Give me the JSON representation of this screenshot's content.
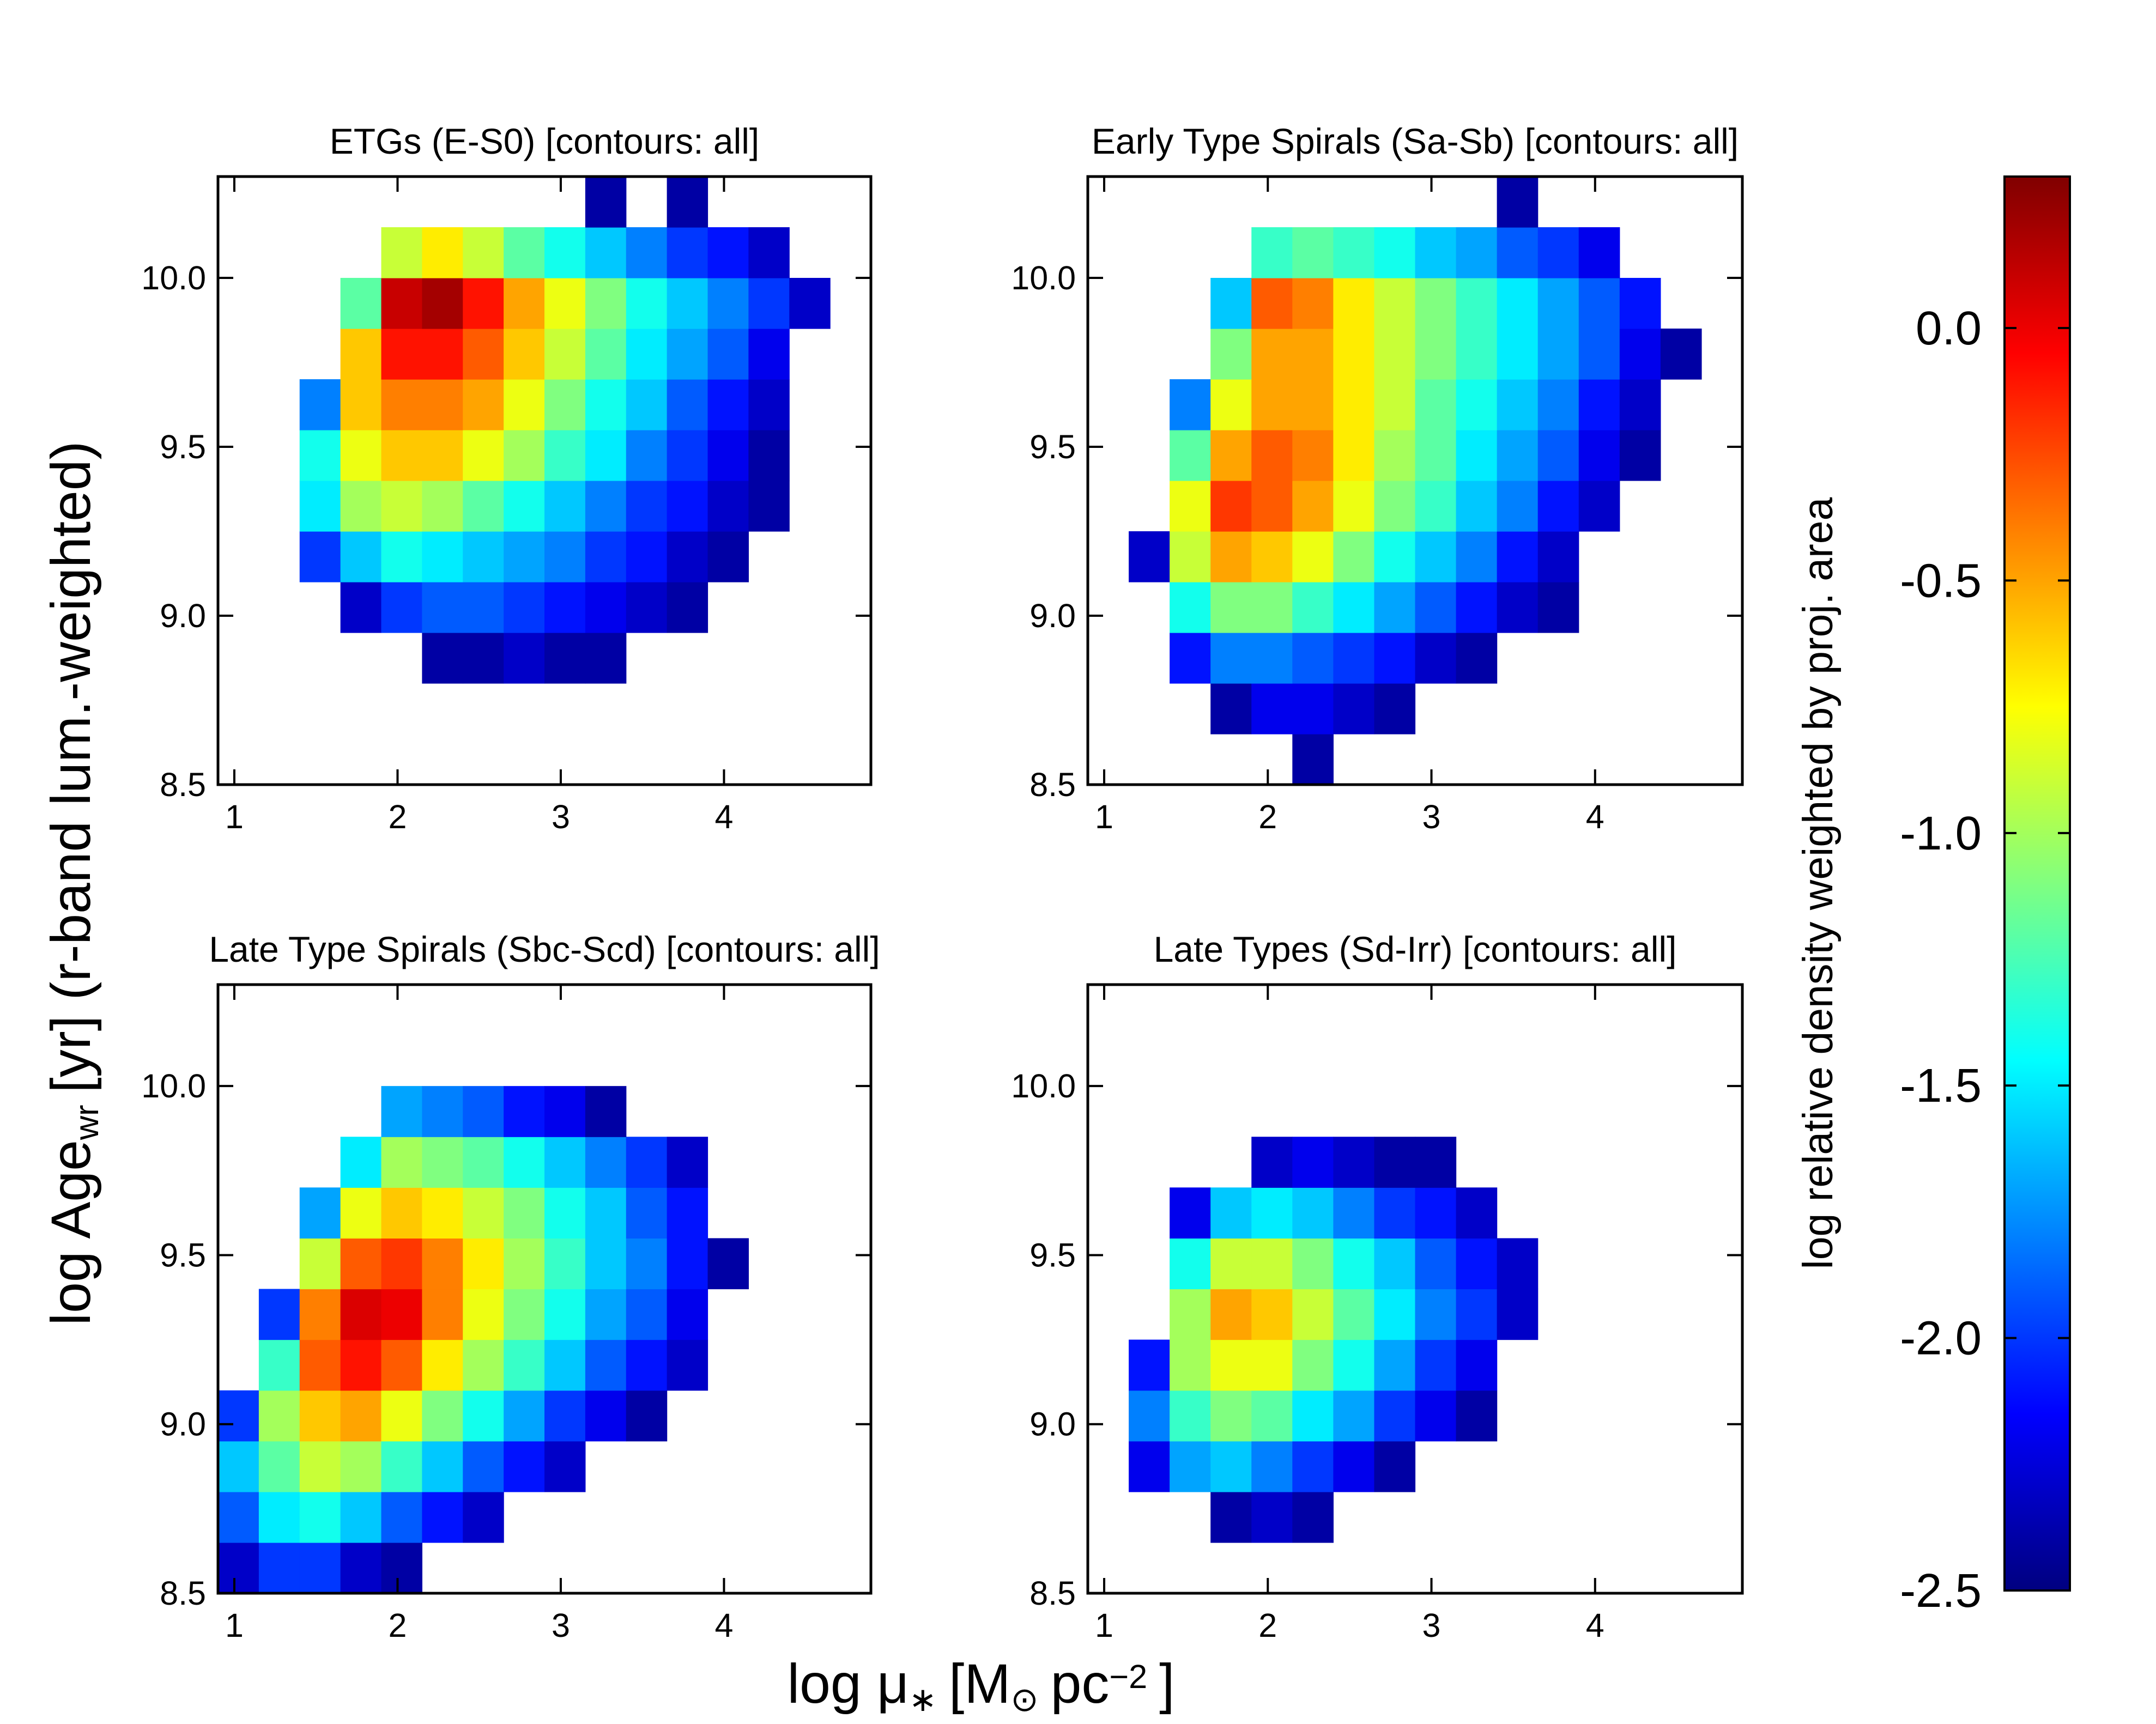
{
  "x_label": [
    {
      "text": "log μ"
    },
    {
      "sub": "∗"
    },
    {
      "text": "[M"
    },
    {
      "sub": "⊙"
    },
    {
      "text": "pc"
    },
    {
      "sup": "−2"
    },
    {
      "text": "]"
    }
  ],
  "y_label": [
    {
      "text": "log Age"
    },
    {
      "sub": "wr"
    },
    {
      "text": "[yr]  (r-band lum.-weighted)"
    }
  ],
  "chart_data": [
    {
      "type": "heatmap",
      "title": "ETGs (E-S0) [contours: all]",
      "xlim": [
        0.9,
        4.9
      ],
      "ylim": [
        8.5,
        10.3
      ],
      "xticks": [
        1,
        2,
        3,
        4
      ],
      "yticks": [
        {
          "value": 8.5,
          "label": "8.5"
        },
        {
          "value": 9,
          "label": "9.0"
        },
        {
          "value": 9.5,
          "label": "9.5"
        },
        {
          "value": 10,
          "label": "10.0"
        }
      ],
      "xbins": [
        0.9,
        1.15,
        1.4,
        1.65,
        1.9,
        2.15,
        2.4,
        2.65,
        2.9,
        3.15,
        3.4,
        3.65,
        3.9,
        4.15,
        4.4,
        4.65,
        4.9
      ],
      "ybins": [
        8.5,
        8.65,
        8.8,
        8.95,
        9.1,
        9.25,
        9.4,
        9.55,
        9.7,
        9.85,
        10.0,
        10.15,
        10.3
      ],
      "values": [
        [
          null,
          null,
          null,
          null,
          null,
          null,
          null,
          null,
          null,
          null,
          null,
          null,
          null,
          null,
          null,
          null
        ],
        [
          null,
          null,
          null,
          null,
          null,
          null,
          null,
          null,
          null,
          null,
          null,
          null,
          null,
          null,
          null,
          null
        ],
        [
          null,
          null,
          null,
          null,
          null,
          -2.4,
          -2.4,
          -2.3,
          -2.4,
          -2.4,
          null,
          null,
          null,
          null,
          null,
          null
        ],
        [
          null,
          null,
          null,
          -2.3,
          -2.0,
          -1.9,
          -1.9,
          -2.0,
          -2.1,
          -2.2,
          -2.3,
          -2.4,
          null,
          null,
          null,
          null
        ],
        [
          null,
          null,
          -2.0,
          -1.6,
          -1.4,
          -1.5,
          -1.6,
          -1.7,
          -1.8,
          -2.0,
          -2.1,
          -2.3,
          -2.4,
          null,
          null,
          null
        ],
        [
          null,
          null,
          -1.5,
          -1.0,
          -0.9,
          -1.0,
          -1.2,
          -1.4,
          -1.6,
          -1.8,
          -2.0,
          -2.1,
          -2.3,
          -2.4,
          null,
          null
        ],
        [
          null,
          null,
          -1.4,
          -0.8,
          -0.6,
          -0.6,
          -0.8,
          -1.0,
          -1.3,
          -1.5,
          -1.8,
          -2.0,
          -2.2,
          -2.4,
          null,
          null
        ],
        [
          null,
          null,
          -1.8,
          -0.6,
          -0.4,
          -0.4,
          -0.5,
          -0.8,
          -1.1,
          -1.4,
          -1.6,
          -1.9,
          -2.1,
          -2.3,
          null,
          null
        ],
        [
          null,
          null,
          null,
          -0.6,
          -0.1,
          -0.1,
          -0.3,
          -0.6,
          -0.9,
          -1.2,
          -1.5,
          -1.7,
          -1.9,
          -2.2,
          null,
          null
        ],
        [
          null,
          null,
          null,
          -1.2,
          0.1,
          0.2,
          -0.1,
          -0.5,
          -0.8,
          -1.1,
          -1.4,
          -1.6,
          -1.8,
          -2.0,
          -2.3,
          null
        ],
        [
          null,
          null,
          null,
          null,
          -0.9,
          -0.7,
          -0.9,
          -1.2,
          -1.4,
          -1.6,
          -1.8,
          -2.0,
          -2.1,
          -2.3,
          null,
          null
        ],
        [
          null,
          null,
          null,
          null,
          null,
          null,
          null,
          null,
          null,
          -2.4,
          null,
          -2.4,
          null,
          null,
          null,
          null
        ]
      ]
    },
    {
      "type": "heatmap",
      "title": "Early Type Spirals (Sa-Sb) [contours: all]",
      "xlim": [
        0.9,
        4.9
      ],
      "ylim": [
        8.5,
        10.3
      ],
      "xticks": [
        1,
        2,
        3,
        4
      ],
      "yticks": [
        {
          "value": 8.5,
          "label": "8.5"
        },
        {
          "value": 9,
          "label": "9.0"
        },
        {
          "value": 9.5,
          "label": "9.5"
        },
        {
          "value": 10,
          "label": "10.0"
        }
      ],
      "xbins": [
        0.9,
        1.15,
        1.4,
        1.65,
        1.9,
        2.15,
        2.4,
        2.65,
        2.9,
        3.15,
        3.4,
        3.65,
        3.9,
        4.15,
        4.4,
        4.65,
        4.9
      ],
      "ybins": [
        8.5,
        8.65,
        8.8,
        8.95,
        9.1,
        9.25,
        9.4,
        9.55,
        9.7,
        9.85,
        10.0,
        10.15,
        10.3
      ],
      "values": [
        [
          null,
          null,
          null,
          null,
          null,
          -2.4,
          null,
          null,
          null,
          null,
          null,
          null,
          null,
          null,
          null,
          null
        ],
        [
          null,
          null,
          null,
          -2.4,
          -2.2,
          -2.2,
          -2.3,
          -2.4,
          null,
          null,
          null,
          null,
          null,
          null,
          null,
          null
        ],
        [
          null,
          null,
          -2.1,
          -1.8,
          -1.8,
          -1.9,
          -2.0,
          -2.1,
          -2.3,
          -2.4,
          null,
          null,
          null,
          null,
          null,
          null
        ],
        [
          null,
          null,
          -1.4,
          -1.1,
          -1.1,
          -1.3,
          -1.5,
          -1.7,
          -1.9,
          -2.1,
          -2.3,
          -2.4,
          null,
          null,
          null,
          null
        ],
        [
          null,
          -2.3,
          -0.9,
          -0.5,
          -0.6,
          -0.8,
          -1.1,
          -1.4,
          -1.6,
          -1.8,
          -2.1,
          -2.3,
          null,
          null,
          null,
          null
        ],
        [
          null,
          null,
          -0.8,
          -0.2,
          -0.3,
          -0.5,
          -0.8,
          -1.1,
          -1.3,
          -1.6,
          -1.8,
          -2.1,
          -2.3,
          null,
          null,
          null
        ],
        [
          null,
          null,
          -1.2,
          -0.5,
          -0.3,
          -0.4,
          -0.7,
          -1.0,
          -1.2,
          -1.5,
          -1.7,
          -1.9,
          -2.2,
          -2.4,
          null,
          null
        ],
        [
          null,
          null,
          -1.8,
          -0.8,
          -0.5,
          -0.5,
          -0.7,
          -0.9,
          -1.2,
          -1.4,
          -1.6,
          -1.8,
          -2.1,
          -2.3,
          null,
          null
        ],
        [
          null,
          null,
          null,
          -1.1,
          -0.5,
          -0.5,
          -0.7,
          -0.9,
          -1.1,
          -1.3,
          -1.5,
          -1.7,
          -1.9,
          -2.2,
          -2.4,
          null
        ],
        [
          null,
          null,
          null,
          -1.6,
          -0.3,
          -0.4,
          -0.7,
          -0.9,
          -1.1,
          -1.3,
          -1.5,
          -1.7,
          -1.9,
          -2.1,
          null,
          null
        ],
        [
          null,
          null,
          null,
          null,
          -1.3,
          -1.2,
          -1.3,
          -1.4,
          -1.6,
          -1.7,
          -1.9,
          -2.0,
          -2.2,
          null,
          null,
          null
        ],
        [
          null,
          null,
          null,
          null,
          null,
          null,
          null,
          null,
          null,
          null,
          -2.4,
          null,
          null,
          null,
          null,
          null
        ]
      ]
    },
    {
      "type": "heatmap",
      "title": "Late Type Spirals (Sbc-Scd) [contours: all]",
      "xlim": [
        0.9,
        4.9
      ],
      "ylim": [
        8.5,
        10.3
      ],
      "xticks": [
        1,
        2,
        3,
        4
      ],
      "yticks": [
        {
          "value": 8.5,
          "label": "8.5"
        },
        {
          "value": 9,
          "label": "9.0"
        },
        {
          "value": 9.5,
          "label": "9.5"
        },
        {
          "value": 10,
          "label": "10.0"
        }
      ],
      "xbins": [
        0.9,
        1.15,
        1.4,
        1.65,
        1.9,
        2.15,
        2.4,
        2.65,
        2.9,
        3.15,
        3.4,
        3.65,
        3.9,
        4.15,
        4.4,
        4.65,
        4.9
      ],
      "ybins": [
        8.5,
        8.65,
        8.8,
        8.95,
        9.1,
        9.25,
        9.4,
        9.55,
        9.7,
        9.85,
        10.0,
        10.15,
        10.3
      ],
      "values": [
        [
          -2.3,
          -2.0,
          -2.0,
          -2.3,
          -2.4,
          null,
          null,
          null,
          null,
          null,
          null,
          null,
          null,
          null,
          null,
          null
        ],
        [
          -1.9,
          -1.5,
          -1.4,
          -1.6,
          -1.9,
          -2.1,
          -2.3,
          null,
          null,
          null,
          null,
          null,
          null,
          null,
          null,
          null
        ],
        [
          -1.6,
          -1.2,
          -0.9,
          -1.0,
          -1.3,
          -1.6,
          -1.9,
          -2.1,
          -2.3,
          null,
          null,
          null,
          null,
          null,
          null,
          null
        ],
        [
          -2.0,
          -1.0,
          -0.6,
          -0.5,
          -0.8,
          -1.1,
          -1.4,
          -1.7,
          -2.0,
          -2.2,
          -2.4,
          null,
          null,
          null,
          null,
          null
        ],
        [
          null,
          -1.3,
          -0.3,
          -0.1,
          -0.3,
          -0.7,
          -1.0,
          -1.3,
          -1.6,
          -1.9,
          -2.1,
          -2.3,
          null,
          null,
          null,
          null
        ],
        [
          null,
          -2.0,
          -0.4,
          0.05,
          0.0,
          -0.4,
          -0.8,
          -1.1,
          -1.4,
          -1.7,
          -1.9,
          -2.2,
          null,
          null,
          null,
          null
        ],
        [
          null,
          null,
          -0.9,
          -0.3,
          -0.2,
          -0.4,
          -0.7,
          -1.0,
          -1.3,
          -1.6,
          -1.8,
          -2.1,
          -2.4,
          null,
          null,
          null
        ],
        [
          null,
          null,
          -1.7,
          -0.8,
          -0.6,
          -0.7,
          -0.9,
          -1.1,
          -1.4,
          -1.6,
          -1.9,
          -2.1,
          null,
          null,
          null,
          null
        ],
        [
          null,
          null,
          null,
          -1.5,
          -1.0,
          -1.1,
          -1.2,
          -1.4,
          -1.6,
          -1.8,
          -2.0,
          -2.3,
          null,
          null,
          null,
          null
        ],
        [
          null,
          null,
          null,
          null,
          -1.7,
          -1.8,
          -1.9,
          -2.1,
          -2.2,
          -2.4,
          null,
          null,
          null,
          null,
          null,
          null
        ],
        [
          null,
          null,
          null,
          null,
          null,
          null,
          null,
          null,
          null,
          null,
          null,
          null,
          null,
          null,
          null,
          null
        ],
        [
          null,
          null,
          null,
          null,
          null,
          null,
          null,
          null,
          null,
          null,
          null,
          null,
          null,
          null,
          null,
          null
        ]
      ]
    },
    {
      "type": "heatmap",
      "title": "Late Types (Sd-Irr) [contours: all]",
      "xlim": [
        0.9,
        4.9
      ],
      "ylim": [
        8.5,
        10.3
      ],
      "xticks": [
        1,
        2,
        3,
        4
      ],
      "yticks": [
        {
          "value": 8.5,
          "label": "8.5"
        },
        {
          "value": 9,
          "label": "9.0"
        },
        {
          "value": 9.5,
          "label": "9.5"
        },
        {
          "value": 10,
          "label": "10.0"
        }
      ],
      "xbins": [
        0.9,
        1.15,
        1.4,
        1.65,
        1.9,
        2.15,
        2.4,
        2.65,
        2.9,
        3.15,
        3.4,
        3.65,
        3.9,
        4.15,
        4.4,
        4.65,
        4.9
      ],
      "ybins": [
        8.5,
        8.65,
        8.8,
        8.95,
        9.1,
        9.25,
        9.4,
        9.55,
        9.7,
        9.85,
        10.0,
        10.15,
        10.3
      ],
      "values": [
        [
          null,
          null,
          null,
          null,
          null,
          null,
          null,
          null,
          null,
          null,
          null,
          null,
          null,
          null,
          null,
          null
        ],
        [
          null,
          null,
          null,
          -2.4,
          -2.3,
          -2.4,
          null,
          null,
          null,
          null,
          null,
          null,
          null,
          null,
          null,
          null
        ],
        [
          null,
          -2.2,
          -1.7,
          -1.6,
          -1.8,
          -2.0,
          -2.2,
          -2.4,
          null,
          null,
          null,
          null,
          null,
          null,
          null,
          null
        ],
        [
          null,
          -1.8,
          -1.3,
          -1.1,
          -1.2,
          -1.5,
          -1.7,
          -2.0,
          -2.2,
          -2.4,
          null,
          null,
          null,
          null,
          null,
          null
        ],
        [
          null,
          -2.1,
          -1.0,
          -0.8,
          -0.8,
          -1.1,
          -1.4,
          -1.7,
          -2.0,
          -2.2,
          null,
          null,
          null,
          null,
          null,
          null
        ],
        [
          null,
          null,
          -1.0,
          -0.5,
          -0.6,
          -0.9,
          -1.2,
          -1.5,
          -1.8,
          -2.0,
          -2.3,
          null,
          null,
          null,
          null,
          null
        ],
        [
          null,
          null,
          -1.4,
          -0.9,
          -0.9,
          -1.1,
          -1.4,
          -1.6,
          -1.9,
          -2.1,
          -2.3,
          null,
          null,
          null,
          null,
          null
        ],
        [
          null,
          null,
          -2.2,
          -1.6,
          -1.5,
          -1.6,
          -1.8,
          -2.0,
          -2.1,
          -2.3,
          null,
          null,
          null,
          null,
          null,
          null
        ],
        [
          null,
          null,
          null,
          null,
          -2.3,
          -2.2,
          -2.3,
          -2.4,
          -2.4,
          null,
          null,
          null,
          null,
          null,
          null,
          null
        ],
        [
          null,
          null,
          null,
          null,
          null,
          null,
          null,
          null,
          null,
          null,
          null,
          null,
          null,
          null,
          null,
          null
        ],
        [
          null,
          null,
          null,
          null,
          null,
          null,
          null,
          null,
          null,
          null,
          null,
          null,
          null,
          null,
          null,
          null
        ],
        [
          null,
          null,
          null,
          null,
          null,
          null,
          null,
          null,
          null,
          null,
          null,
          null,
          null,
          null,
          null,
          null
        ]
      ]
    },
    {
      "type": "colorbar",
      "colormap": "jet",
      "label": "log relative density weighted by proj. area",
      "zlim": [
        -2.5,
        0.3
      ],
      "zticks": [
        {
          "value": 0,
          "label": "0.0"
        },
        {
          "value": -0.5,
          "label": "-0.5"
        },
        {
          "value": -1,
          "label": "-1.0"
        },
        {
          "value": -1.5,
          "label": "-1.5"
        },
        {
          "value": -2,
          "label": "-2.0"
        },
        {
          "value": -2.5,
          "label": "-2.5"
        }
      ]
    }
  ]
}
